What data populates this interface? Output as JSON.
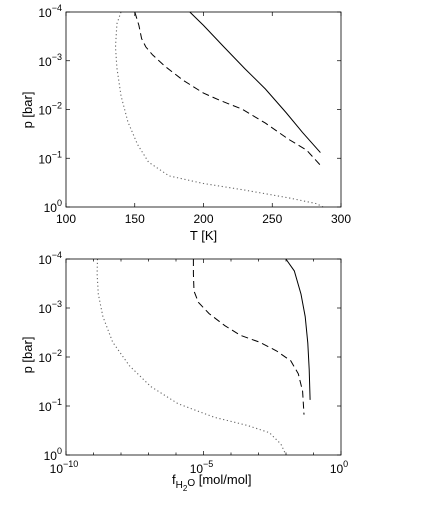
{
  "chart_data": [
    {
      "type": "line",
      "xlabel": "T [K]",
      "ylabel": "p [bar]",
      "xscale": "linear",
      "yscale": "log",
      "yreversed": true,
      "xlim": [
        100,
        300
      ],
      "ylim": [
        0.0001,
        1
      ],
      "xticks": [
        "100",
        "150",
        "200",
        "250",
        "300"
      ],
      "yticks": [
        {
          "base": "10",
          "exp": "−4"
        },
        {
          "base": "10",
          "exp": "−3"
        },
        {
          "base": "10",
          "exp": "−2"
        },
        {
          "base": "10",
          "exp": "−1"
        },
        {
          "base": "10",
          "exp": "0"
        }
      ],
      "grid": false,
      "series": [
        {
          "style": "solid",
          "x": [
            190,
            200,
            215,
            230,
            245,
            260,
            272,
            285
          ],
          "y": [
            0.0001,
            0.000188,
            0.000525,
            0.00145,
            0.0038,
            0.0115,
            0.0295,
            0.0765
          ]
        },
        {
          "style": "dashed",
          "x": [
            150,
            153,
            155,
            158,
            163,
            172,
            185,
            200,
            212,
            228,
            245,
            262,
            275,
            286
          ],
          "y": [
            0.0001,
            0.000188,
            0.000352,
            0.00052,
            0.00076,
            0.0013,
            0.0025,
            0.0046,
            0.0065,
            0.0098,
            0.019,
            0.041,
            0.068,
            0.15
          ]
        },
        {
          "style": "dotted",
          "x": [
            140,
            137,
            136,
            137,
            140,
            145,
            152,
            160,
            175,
            200,
            230,
            262,
            282,
            287
          ],
          "y": [
            0.0001,
            0.000175,
            0.000525,
            0.0014,
            0.0052,
            0.018,
            0.052,
            0.12,
            0.23,
            0.33,
            0.45,
            0.65,
            0.85,
            1
          ]
        }
      ]
    },
    {
      "type": "line",
      "xlabel": {
        "f": "f",
        "sub1": "H",
        "sub2": "2",
        "o": "O",
        "unit": "[mol/mol]"
      },
      "ylabel": "p [bar]",
      "xscale": "log",
      "yscale": "log",
      "yreversed": true,
      "xlim": [
        1e-10,
        1
      ],
      "ylim": [
        0.0001,
        1
      ],
      "xticks": [
        {
          "base": "10",
          "exp": "−10"
        },
        {
          "base": "10",
          "exp": "−5"
        },
        {
          "base": "10",
          "exp": "0"
        }
      ],
      "yticks": [
        {
          "base": "10",
          "exp": "−4"
        },
        {
          "base": "10",
          "exp": "−3"
        },
        {
          "base": "10",
          "exp": "−2"
        },
        {
          "base": "10",
          "exp": "−1"
        },
        {
          "base": "10",
          "exp": "0"
        }
      ],
      "grid": false,
      "series": [
        {
          "style": "solid",
          "x": [
            0.0099,
            0.02,
            0.035,
            0.05,
            0.062,
            0.07,
            0.075
          ],
          "y": [
            0.0001,
            0.000175,
            0.00052,
            0.0015,
            0.0052,
            0.018,
            0.075
          ]
        },
        {
          "style": "dashed",
          "x": [
            4.3e-06,
            4.3e-06,
            4.5e-06,
            6.5e-06,
            1.6e-05,
            6e-05,
            0.00022,
            0.0011,
            0.0045,
            0.015,
            0.028,
            0.04,
            0.045
          ],
          "y": [
            0.0001,
            0.0002,
            0.00045,
            0.00077,
            0.0013,
            0.0023,
            0.0036,
            0.005,
            0.0075,
            0.012,
            0.022,
            0.05,
            0.15
          ]
        },
        {
          "style": "dotted",
          "x": [
            1.4e-09,
            1.35e-09,
            1.5e-09,
            2.2e-09,
            5e-09,
            2e-08,
            1.2e-07,
            1.2e-06,
            2.5e-05,
            0.0004,
            0.0025,
            0.0065,
            0.01
          ],
          "y": [
            0.0001,
            0.0002,
            0.00052,
            0.0015,
            0.005,
            0.015,
            0.04,
            0.09,
            0.17,
            0.25,
            0.35,
            0.6,
            1
          ]
        }
      ]
    }
  ]
}
